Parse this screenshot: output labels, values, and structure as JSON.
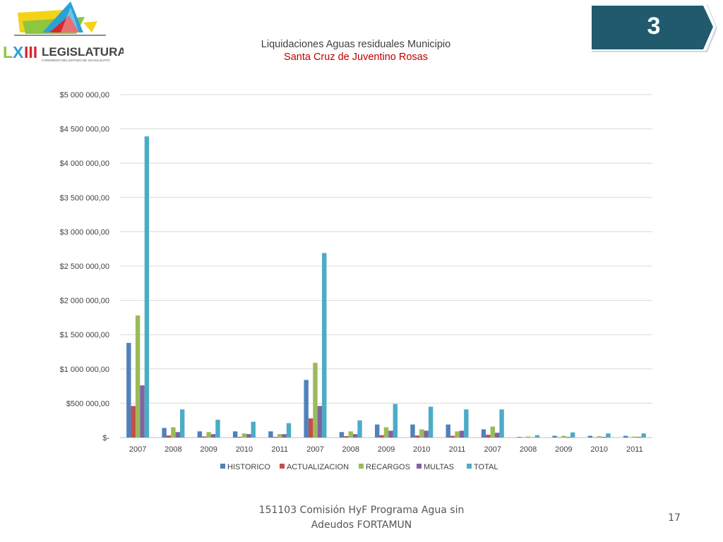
{
  "header": {
    "logo_text": "LEGISLATURA",
    "logo_subtext": "CONGRESO DEL ESTADO DE GUANAJUATO",
    "slide_badge": "3"
  },
  "footer": {
    "line1": "151103 Comisión HyF Programa Agua sin",
    "line2": "Adeudos FORTAMUN",
    "page_number": "17"
  },
  "colors": {
    "HISTORICO": "#4f81bd",
    "ACTUALIZACION": "#c0504d",
    "RECARGOS": "#9bbb59",
    "MULTAS": "#8064a2",
    "TOTAL": "#4bacc6",
    "badge": "#215a6d",
    "title_red": "#c00000"
  },
  "chart_data": {
    "type": "bar",
    "title": "Liquidaciones Aguas residuales Municipio",
    "subtitle": "Santa Cruz de Juventino Rosas",
    "categories": [
      "2007",
      "2008",
      "2009",
      "2010",
      "2011",
      "2007",
      "2008",
      "2009",
      "2010",
      "2011",
      "2007",
      "2008",
      "2009",
      "2010",
      "2011"
    ],
    "ylim": [
      0,
      5000000
    ],
    "y_ticks": [
      "$-",
      "$500 000,00",
      "$1 000 000,00",
      "$1 500 000,00",
      "$2 000 000,00",
      "$2 500 000,00",
      "$3 000 000,00",
      "$3 500 000,00",
      "$4 000 000,00",
      "$4 500 000,00",
      "$5 000 000,00"
    ],
    "grid": true,
    "legend_position": "bottom",
    "series": [
      {
        "name": "HISTORICO",
        "values": [
          1380000,
          140000,
          90000,
          90000,
          90000,
          840000,
          80000,
          190000,
          190000,
          190000,
          120000,
          10000,
          25000,
          25000,
          25000
        ]
      },
      {
        "name": "ACTUALIZACION",
        "values": [
          460000,
          30000,
          15000,
          10000,
          10000,
          280000,
          20000,
          35000,
          30000,
          25000,
          40000,
          3000,
          5000,
          3000,
          3000
        ]
      },
      {
        "name": "RECARGOS",
        "values": [
          1780000,
          150000,
          80000,
          60000,
          50000,
          1090000,
          90000,
          150000,
          120000,
          90000,
          160000,
          15000,
          25000,
          20000,
          15000
        ]
      },
      {
        "name": "MULTAS",
        "values": [
          760000,
          80000,
          50000,
          50000,
          50000,
          460000,
          50000,
          100000,
          100000,
          100000,
          70000,
          5000,
          10000,
          10000,
          10000
        ]
      },
      {
        "name": "TOTAL",
        "values": [
          4390000,
          410000,
          260000,
          230000,
          210000,
          2690000,
          250000,
          490000,
          450000,
          410000,
          410000,
          35000,
          75000,
          60000,
          60000
        ]
      }
    ]
  }
}
